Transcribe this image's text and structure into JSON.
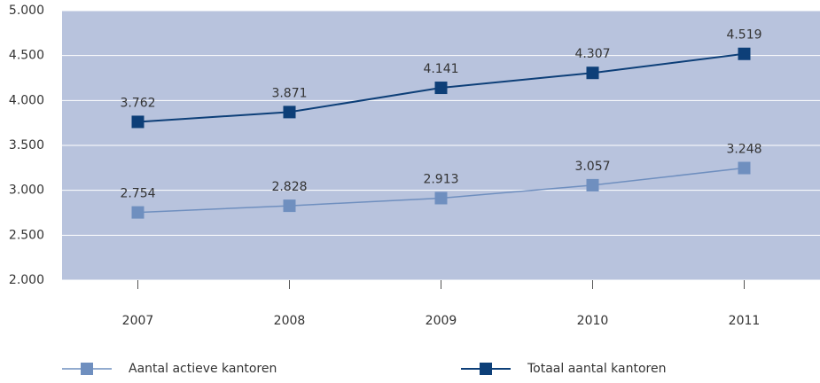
{
  "chart_data": {
    "type": "line",
    "categories": [
      "2007",
      "2008",
      "2009",
      "2010",
      "2011"
    ],
    "series": [
      {
        "name": "Aantal actieve kantoren",
        "color": "#6f8fbf",
        "values": [
          2754,
          2828,
          2913,
          3057,
          3248
        ],
        "value_labels": [
          "2.754",
          "2.828",
          "2.913",
          "3.057",
          "3.248"
        ]
      },
      {
        "name": "Totaal aantal kantoren",
        "color": "#0d3f78",
        "values": [
          3762,
          3871,
          4141,
          4307,
          4519
        ],
        "value_labels": [
          "3.762",
          "3.871",
          "4.141",
          "4.307",
          "4.519"
        ]
      }
    ],
    "ylim": [
      2000,
      5000
    ],
    "yticks": [
      {
        "value": 2000,
        "label": "2.000"
      },
      {
        "value": 2500,
        "label": "2.500"
      },
      {
        "value": 3000,
        "label": "3.000"
      },
      {
        "value": 3500,
        "label": "3.500"
      },
      {
        "value": 4000,
        "label": "4.000"
      },
      {
        "value": 4500,
        "label": "4.500"
      },
      {
        "value": 5000,
        "label": "5.000"
      }
    ],
    "grid": true,
    "plot_background": "#b8c3dd",
    "legend": "bottom"
  }
}
